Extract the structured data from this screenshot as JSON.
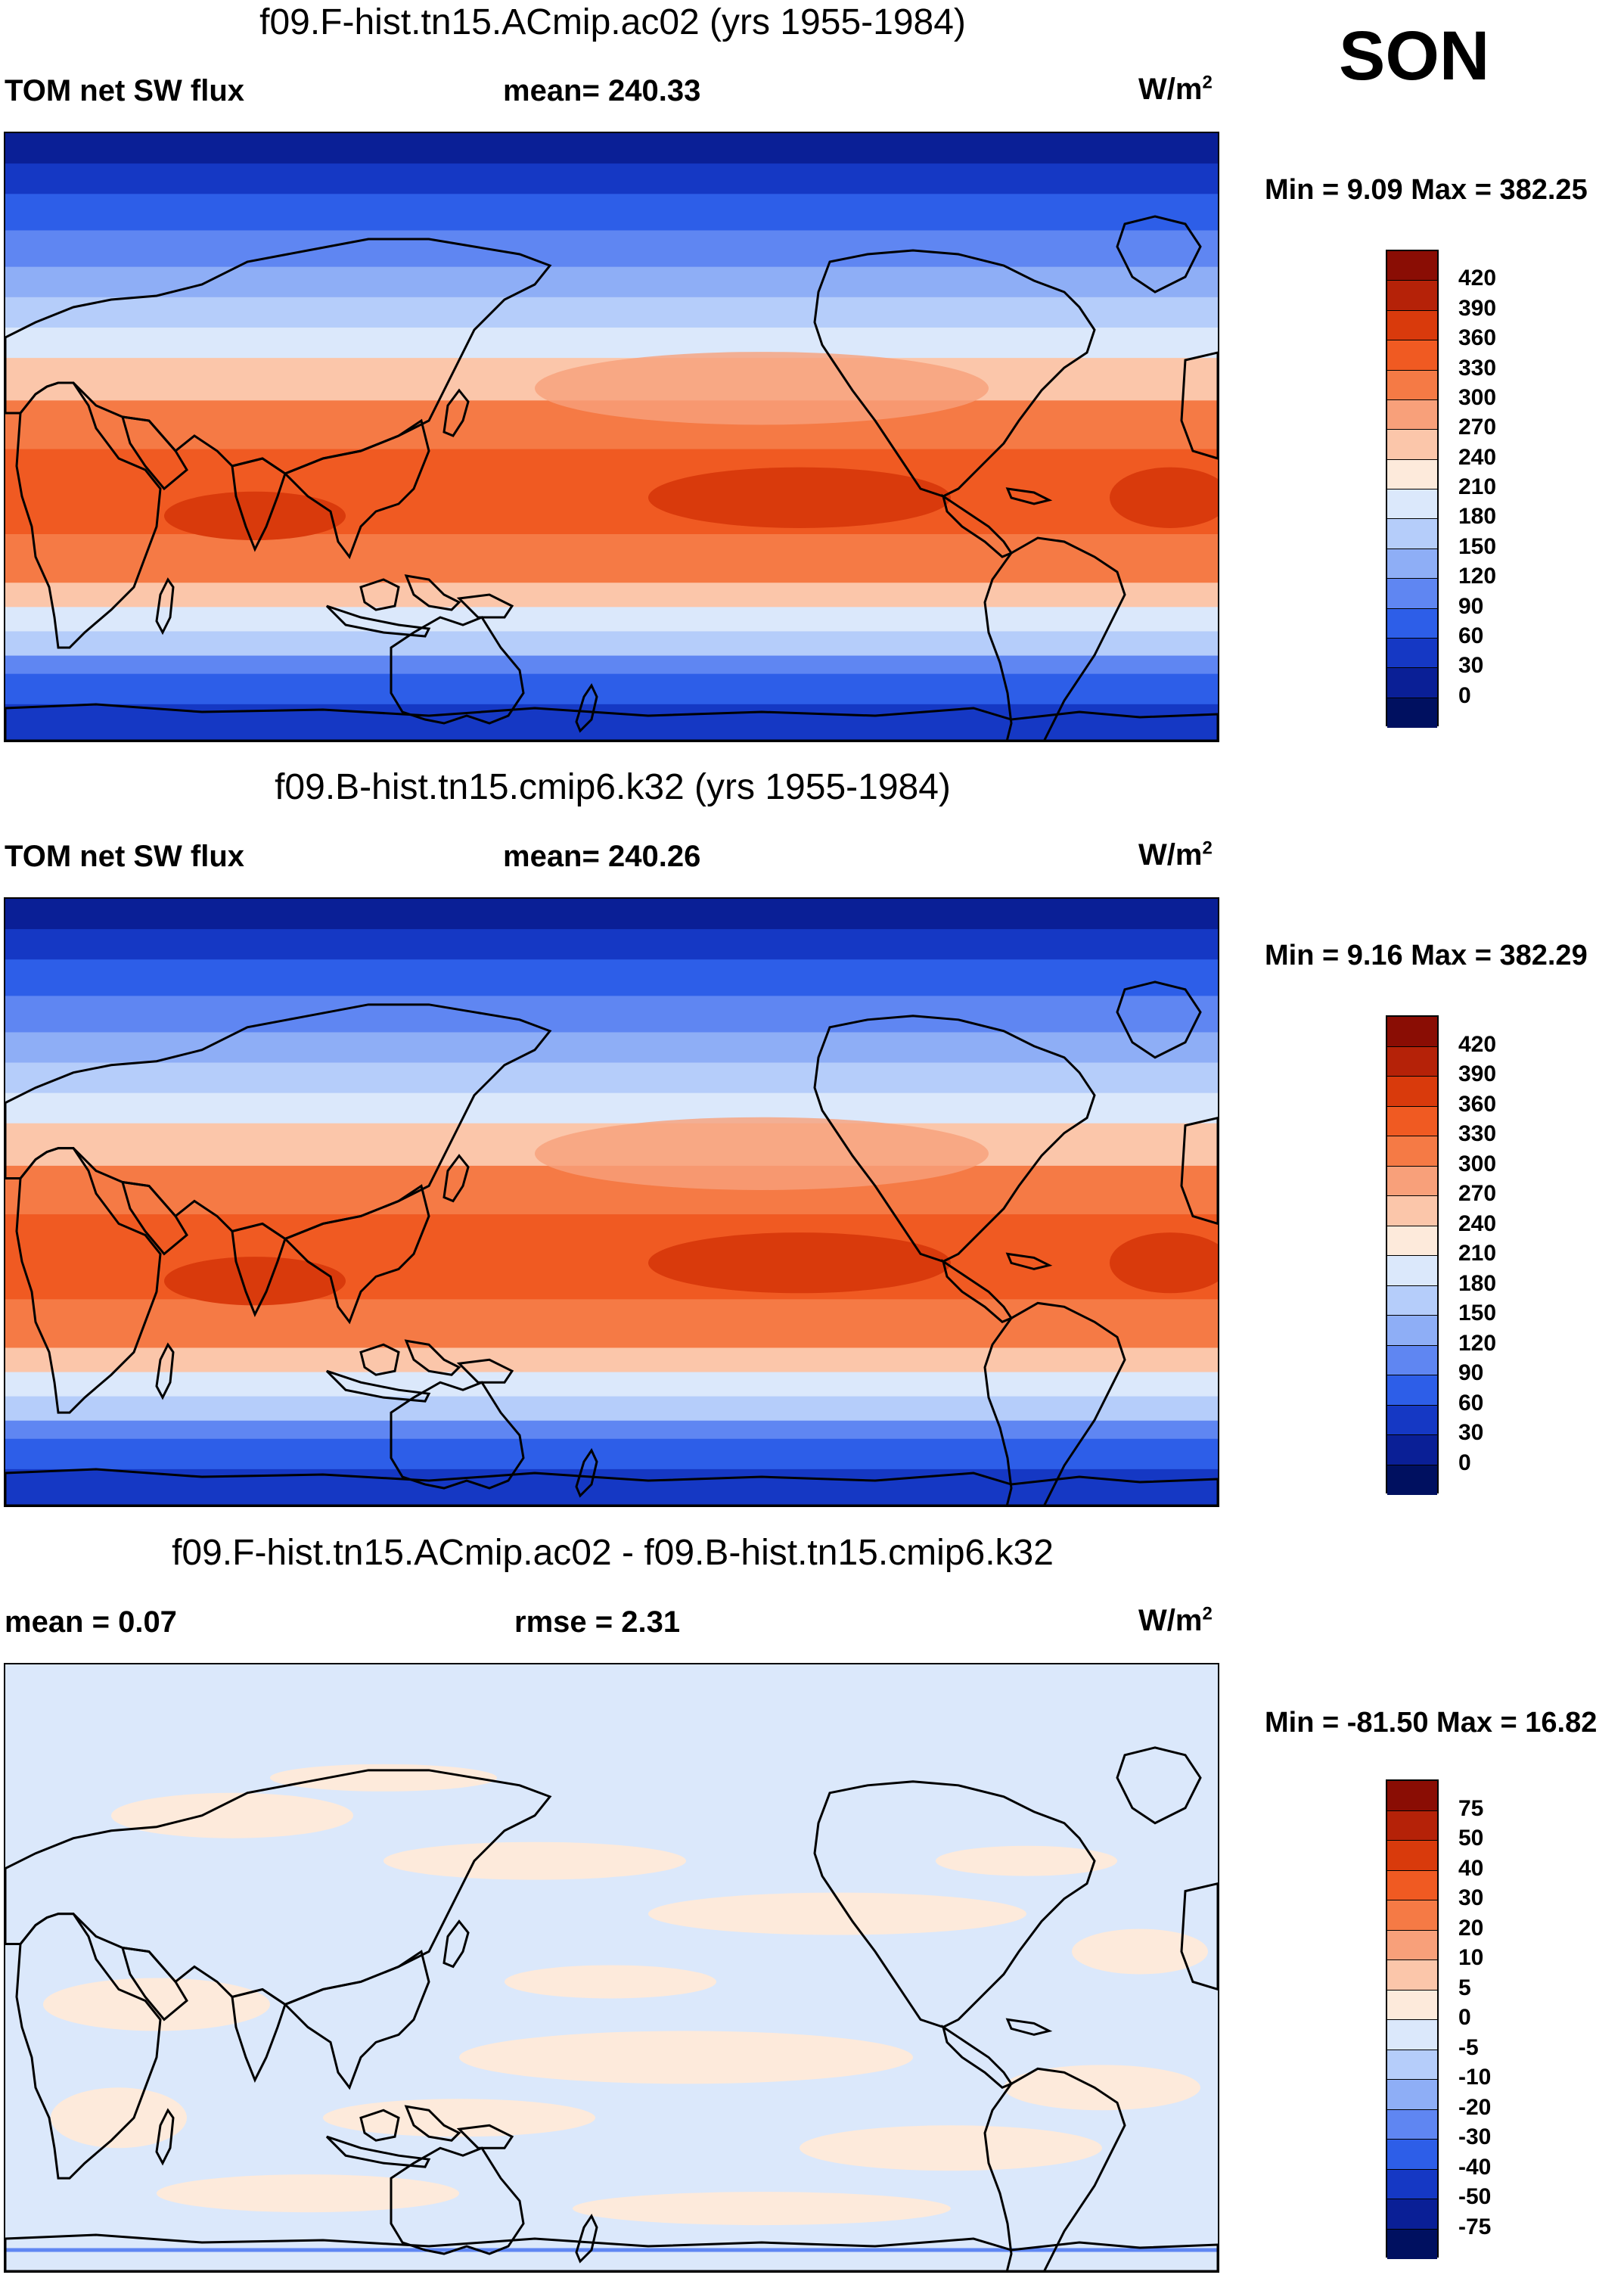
{
  "season": "SON",
  "panels": [
    {
      "title": "f09.F-hist.tn15.ACmip.ac02 (yrs 1955-1984)",
      "left_label": "TOM net SW flux",
      "center_label": "mean= 240.33",
      "units": "W/m",
      "units_sup": "2",
      "minmax": "Min =    9.09 Max = 382.25",
      "colorbar_labels": [
        "420",
        "390",
        "360",
        "330",
        "300",
        "270",
        "240",
        "210",
        "180",
        "150",
        "120",
        "90",
        "60",
        "30",
        "0"
      ]
    },
    {
      "title": "f09.B-hist.tn15.cmip6.k32 (yrs 1955-1984)",
      "left_label": "TOM net SW flux",
      "center_label": "mean= 240.26",
      "units": "W/m",
      "units_sup": "2",
      "minmax": "Min =    9.16 Max = 382.29",
      "colorbar_labels": [
        "420",
        "390",
        "360",
        "330",
        "300",
        "270",
        "240",
        "210",
        "180",
        "150",
        "120",
        "90",
        "60",
        "30",
        "0"
      ]
    },
    {
      "title": "f09.F-hist.tn15.ACmip.ac02 - f09.B-hist.tn15.cmip6.k32",
      "left_label": "mean =   0.07",
      "center_label": "rmse =   2.31",
      "units": "W/m",
      "units_sup": "2",
      "minmax": "Min = -81.50 Max =  16.82",
      "colorbar_labels": [
        "75",
        "50",
        "40",
        "30",
        "20",
        "10",
        "5",
        "0",
        "-5",
        "-10",
        "-20",
        "-30",
        "-40",
        "-50",
        "-75"
      ]
    }
  ],
  "colors": {
    "abs_scale": [
      "#8a0d04",
      "#b52208",
      "#d93a0c",
      "#f05a22",
      "#f57a45",
      "#f8a07a",
      "#fbc6aa",
      "#fdeadb",
      "#dbe8fb",
      "#b5cdfa",
      "#8eaef6",
      "#5f86f2",
      "#2d5ee8",
      "#1538c4",
      "#0a1f96",
      "#001060"
    ],
    "diff_scale": [
      "#8a0d04",
      "#b52208",
      "#d93a0c",
      "#f05a22",
      "#f57a45",
      "#f8a07a",
      "#fbc6aa",
      "#fdeadb",
      "#dbe8fb",
      "#b5cdfa",
      "#8eaef6",
      "#5f86f2",
      "#2d5ee8",
      "#1538c4",
      "#0a1f96",
      "#001060"
    ],
    "coast": "#000000"
  }
}
